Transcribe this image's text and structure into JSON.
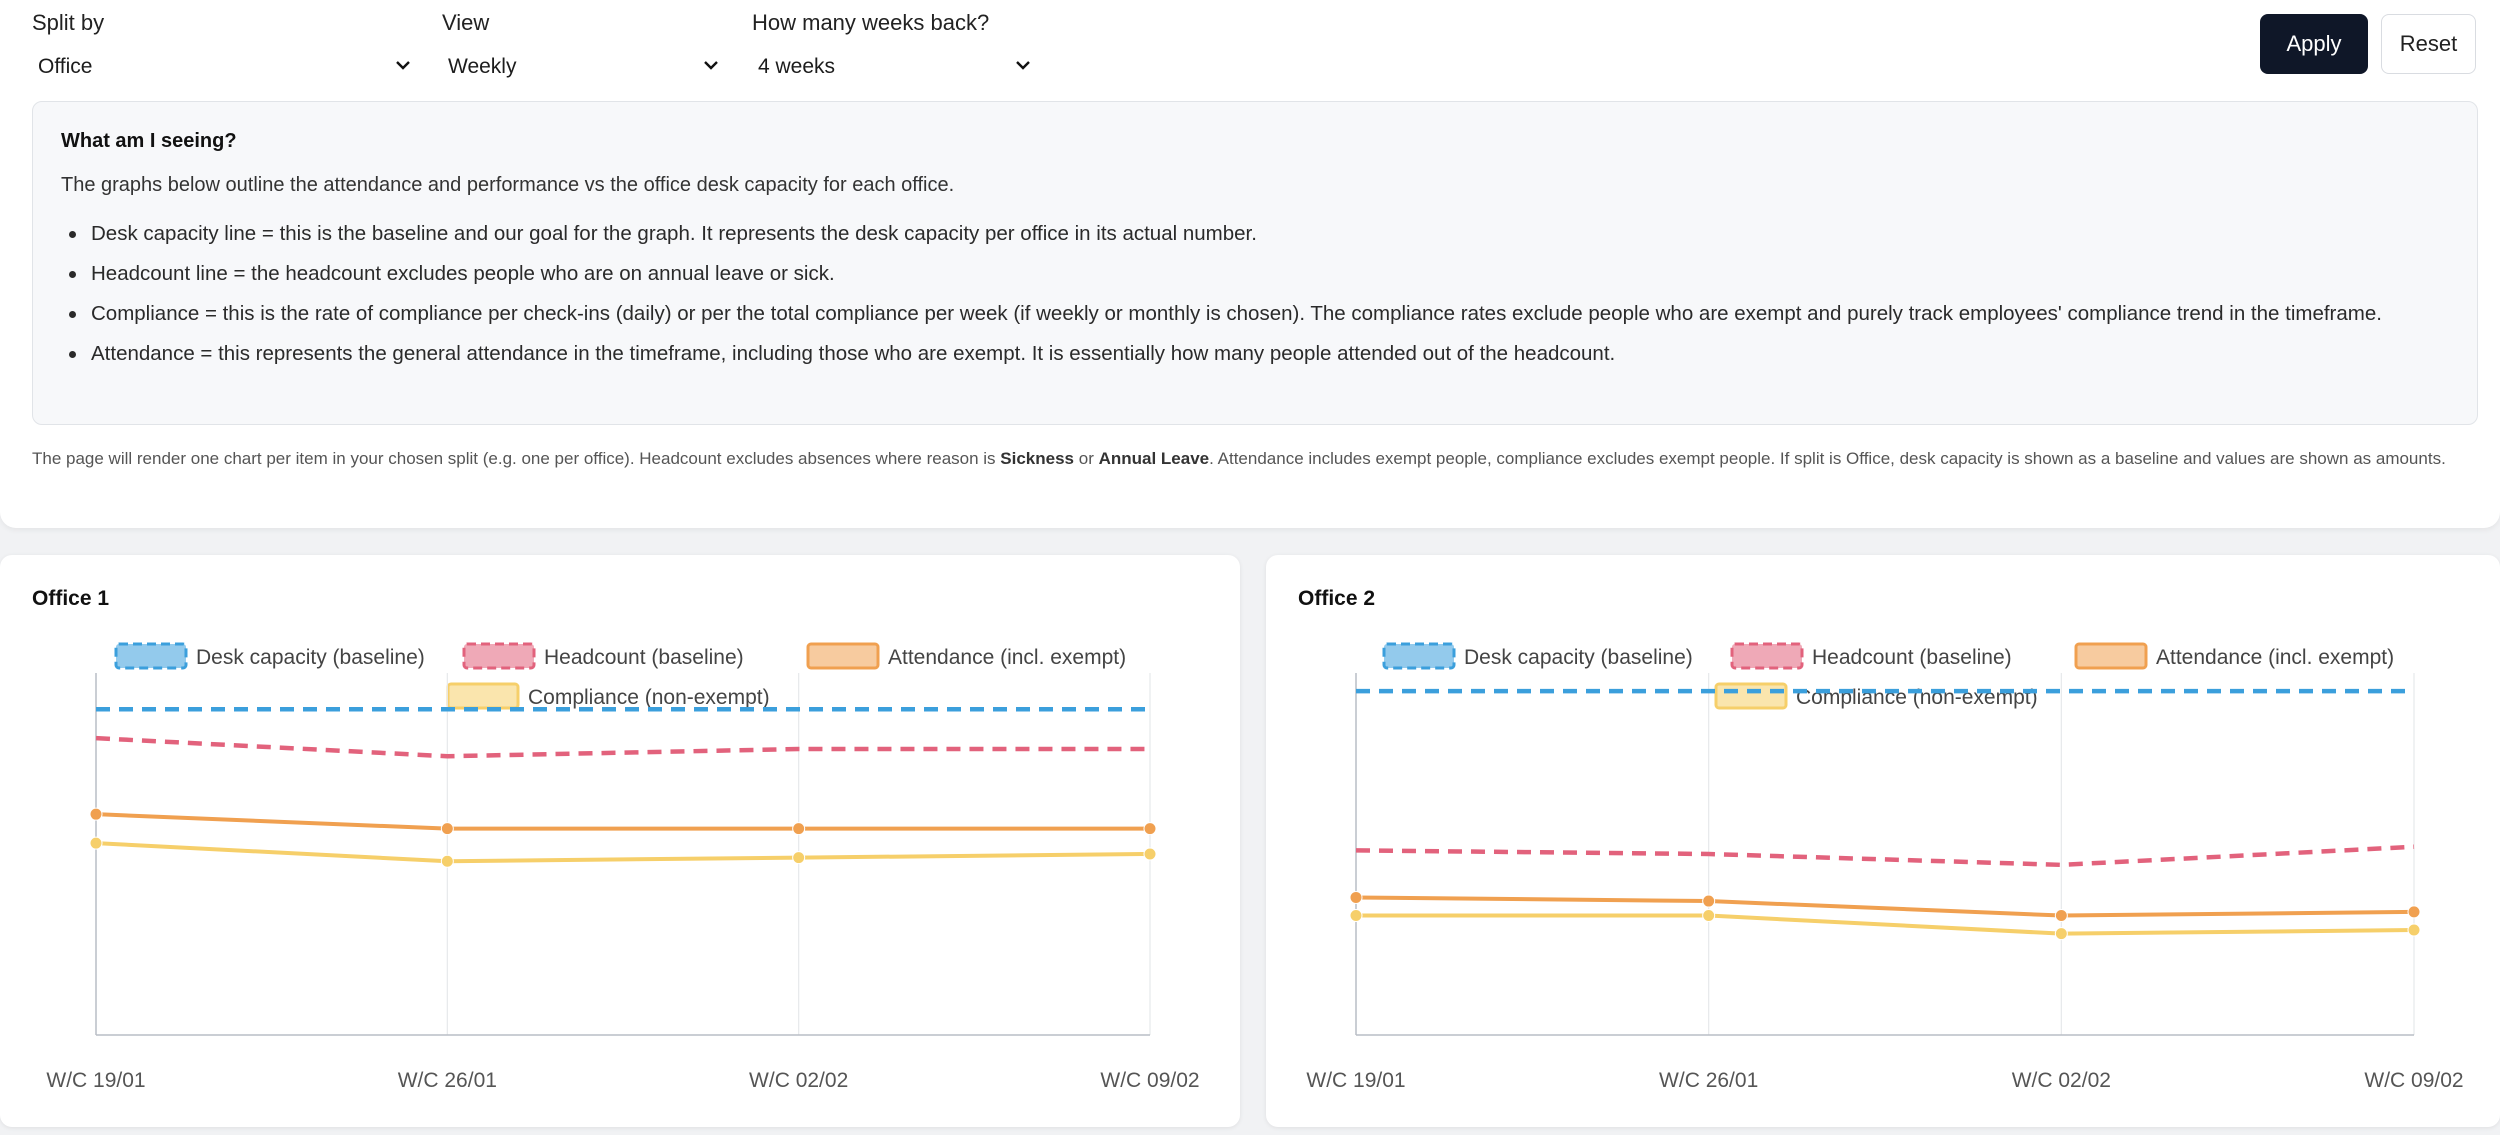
{
  "filters": {
    "split_by": {
      "label": "Split by",
      "value": "Office"
    },
    "view": {
      "label": "View",
      "value": "Weekly"
    },
    "weeks_back": {
      "label": "How many weeks back?",
      "value": "4 weeks"
    }
  },
  "buttons": {
    "apply": "Apply",
    "reset": "Reset"
  },
  "info": {
    "title": "What am I seeing?",
    "intro": "The graphs below outline the attendance and performance vs the office desk capacity for each office.",
    "bullets": [
      "Desk capacity line = this is the baseline and our goal for the graph. It represents the desk capacity per office in its actual number.",
      "Headcount line = the headcount excludes people who are on annual leave or sick.",
      "Compliance = this is the rate of compliance per check-ins (daily) or per the total compliance per week (if weekly or monthly is chosen). The compliance rates exclude people who are exempt and purely track employees' compliance trend in the timeframe.",
      "Attendance = this represents the general attendance in the timeframe, including those who are exempt. It is essentially how many people attended out of the headcount."
    ]
  },
  "note": {
    "part1": "The page will render one chart per item in your chosen split (e.g. one per office). Headcount excludes absences where reason is ",
    "sickness": "Sickness",
    "part2": " or ",
    "annual_leave": "Annual Leave",
    "part3": ". Attendance includes exempt people, compliance excludes exempt people. If split is Office, desk capacity is shown as a baseline and values are shown as amounts."
  },
  "chart_data": [
    {
      "type": "line",
      "title": "Office 1",
      "categories": [
        "W/C 19/01",
        "W/C 26/01",
        "W/C 02/02",
        "W/C 09/02"
      ],
      "ylim": [
        0,
        100
      ],
      "grid": "vertical",
      "legend": "top-center",
      "series": [
        {
          "name": "Desk capacity (baseline)",
          "values": [
            90,
            90,
            90,
            90
          ],
          "color": "#3b9fdc",
          "dashed": true
        },
        {
          "name": "Headcount (baseline)",
          "values": [
            82,
            77,
            79,
            79
          ],
          "color": "#e2627c",
          "dashed": true
        },
        {
          "name": "Attendance (incl. exempt)",
          "values": [
            61,
            57,
            57,
            57
          ],
          "color": "#f0a050",
          "dashed": false
        },
        {
          "name": "Compliance (non-exempt)",
          "values": [
            53,
            48,
            49,
            50
          ],
          "color": "#f6cf6a",
          "dashed": false
        }
      ]
    },
    {
      "type": "line",
      "title": "Office 2",
      "categories": [
        "W/C 19/01",
        "W/C 26/01",
        "W/C 02/02",
        "W/C 09/02"
      ],
      "ylim": [
        0,
        100
      ],
      "grid": "vertical",
      "legend": "top-center",
      "series": [
        {
          "name": "Desk capacity (baseline)",
          "values": [
            95,
            95,
            95,
            95
          ],
          "color": "#3b9fdc",
          "dashed": true
        },
        {
          "name": "Headcount (baseline)",
          "values": [
            51,
            50,
            47,
            52
          ],
          "color": "#e2627c",
          "dashed": true
        },
        {
          "name": "Attendance (incl. exempt)",
          "values": [
            38,
            37,
            33,
            34
          ],
          "color": "#f0a050",
          "dashed": false
        },
        {
          "name": "Compliance (non-exempt)",
          "values": [
            33,
            33,
            28,
            29
          ],
          "color": "#f6cf6a",
          "dashed": false
        }
      ]
    }
  ]
}
